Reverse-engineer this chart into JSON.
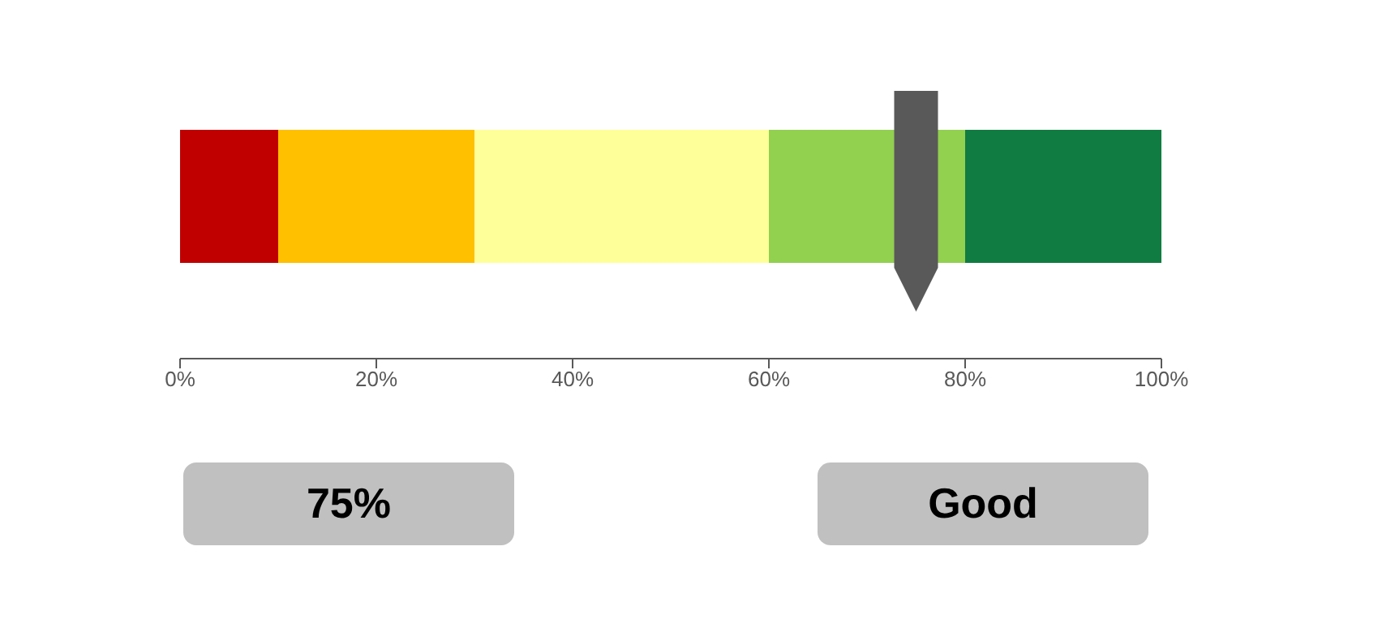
{
  "chart_data": {
    "type": "bar",
    "orientation": "horizontal",
    "stacked": true,
    "categories": [
      null
    ],
    "series": [
      {
        "color": "#c00000",
        "values": [
          10
        ]
      },
      {
        "color": "#ffc000",
        "values": [
          20
        ]
      },
      {
        "color": "#ffff99",
        "values": [
          30
        ]
      },
      {
        "color": "#92d050",
        "values": [
          20
        ]
      },
      {
        "color": "#107c41",
        "values": [
          20
        ]
      }
    ],
    "xlim": [
      0,
      100
    ],
    "xticks": [
      {
        "value": 0,
        "label": "0%"
      },
      {
        "value": 20,
        "label": "20%"
      },
      {
        "value": 40,
        "label": "40%"
      },
      {
        "value": 60,
        "label": "60%"
      },
      {
        "value": 80,
        "label": "80%"
      },
      {
        "value": 100,
        "label": "100%"
      }
    ],
    "ref_lines": [
      {
        "axis": "x",
        "value": 75,
        "color": "#595959"
      }
    ],
    "annotations": [
      "75%",
      "Good"
    ]
  }
}
